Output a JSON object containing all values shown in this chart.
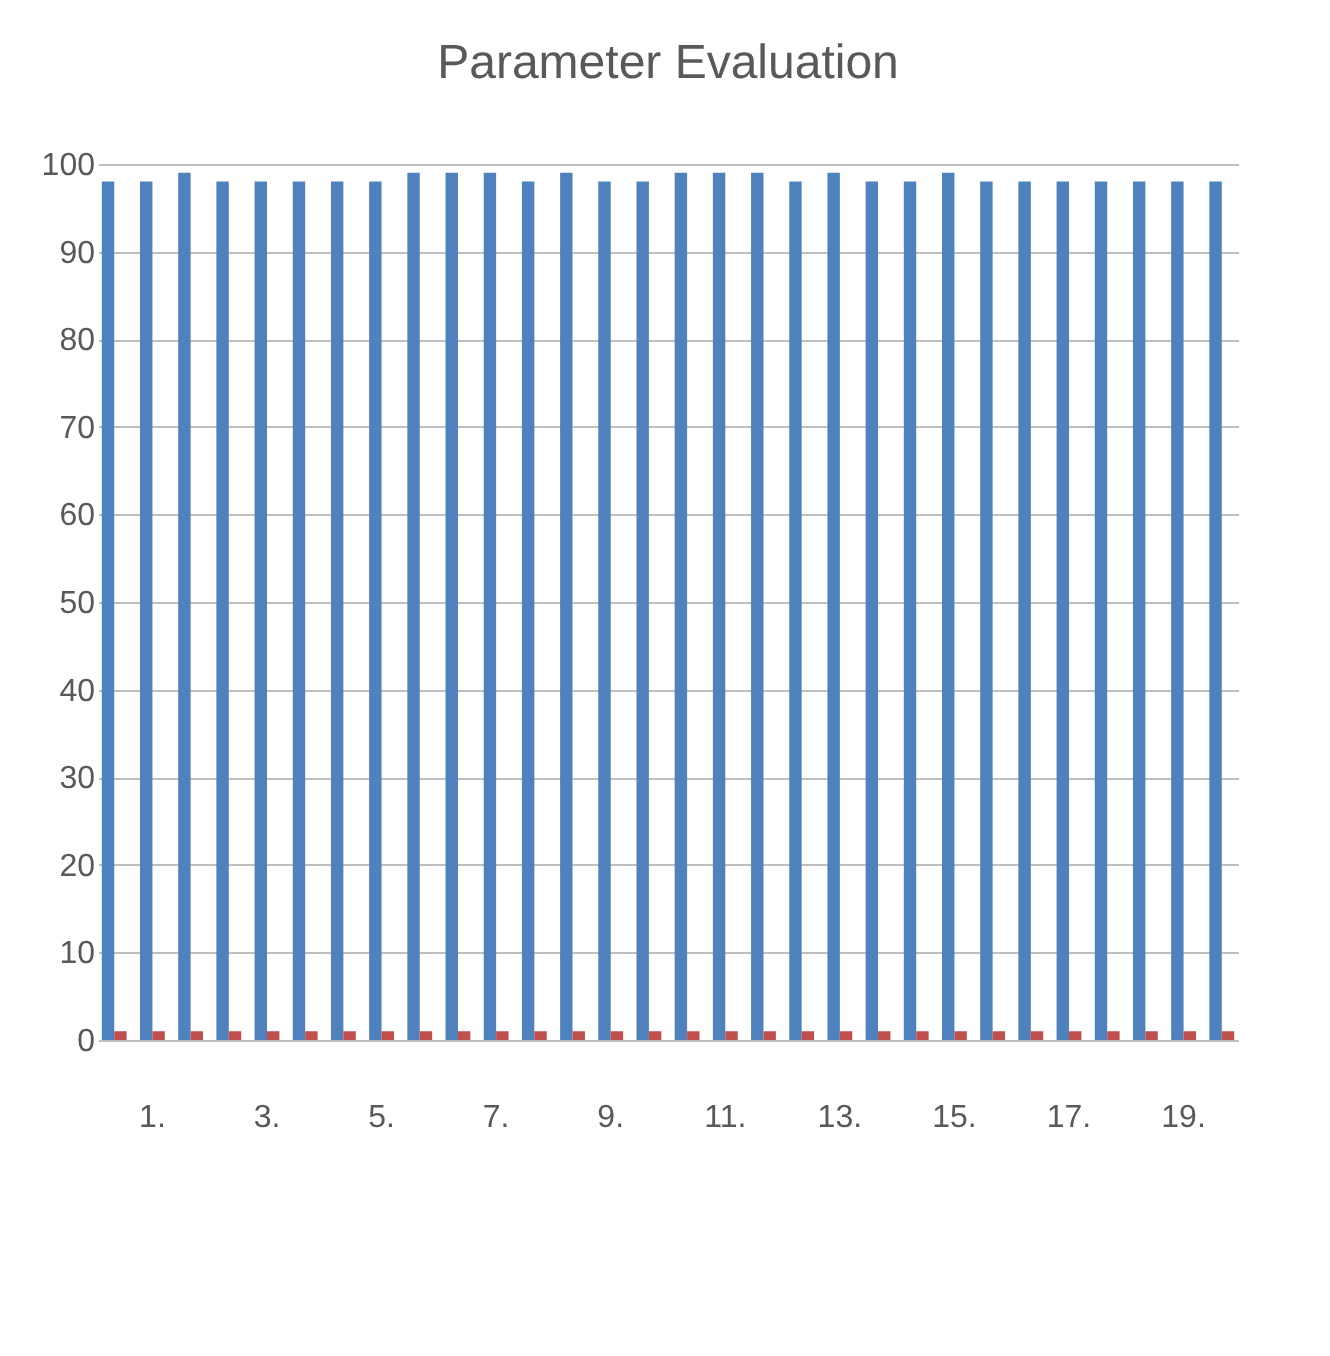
{
  "chart_data": {
    "type": "bar",
    "title": "Parameter Evaluation",
    "categories": [
      null,
      "1.",
      null,
      null,
      "3.",
      null,
      null,
      "5.",
      null,
      null,
      "7.",
      null,
      null,
      "9.",
      null,
      null,
      "11.",
      null,
      null,
      "13.",
      null,
      null,
      "15.",
      null,
      null,
      "17.",
      null,
      null,
      "19.",
      null
    ],
    "series": [
      {
        "color": "#4f81bd",
        "values": [
          98,
          98,
          99,
          98,
          98,
          98,
          98,
          98,
          99,
          99,
          99,
          98,
          99,
          98,
          98,
          99,
          99,
          99,
          98,
          99,
          98,
          98,
          99,
          98,
          98,
          98,
          98,
          98,
          98,
          98
        ]
      },
      {
        "color": "#c0504d",
        "values": [
          1,
          1,
          1,
          1,
          1,
          1,
          1,
          1,
          1,
          1,
          1,
          1,
          1,
          1,
          1,
          1,
          1,
          1,
          1,
          1,
          1,
          1,
          1,
          1,
          1,
          1,
          1,
          1,
          1,
          1
        ]
      }
    ],
    "ylim": [
      0,
      100
    ],
    "yticks": [
      0,
      10,
      20,
      30,
      40,
      50,
      60,
      70,
      80,
      90,
      100
    ],
    "grid": "y",
    "legend": false
  }
}
